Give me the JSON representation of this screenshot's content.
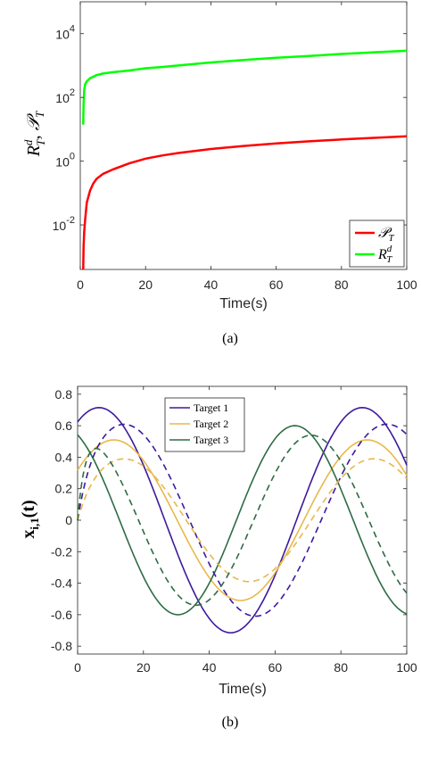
{
  "chart_data": [
    {
      "type": "line",
      "panel_label": "(a)",
      "xlabel": "Time(s)",
      "ylabel_parts": {
        "r": "R",
        "r_sup": "d",
        "r_sub": "T",
        "sep": ", ",
        "p": "𝒫",
        "p_sub": "T"
      },
      "yscale": "log",
      "xlim": [
        0,
        100
      ],
      "ylim": [
        0.0004,
        100000
      ],
      "x_ticks": [
        0,
        20,
        40,
        60,
        80,
        100
      ],
      "x_tick_labels": [
        "0",
        "20",
        "40",
        "60",
        "80",
        "100"
      ],
      "y_ticks": [
        0.01,
        1,
        100,
        10000
      ],
      "y_tick_labels": [
        {
          "base": "10",
          "exp": "-2"
        },
        {
          "base": "10",
          "exp": "0"
        },
        {
          "base": "10",
          "exp": "2"
        },
        {
          "base": "10",
          "exp": "4"
        }
      ],
      "legend": {
        "position": "bottom-right",
        "entries": [
          {
            "main": "𝒫",
            "sub": "T",
            "sup": "",
            "color": "#ff0000"
          },
          {
            "main": "R",
            "sub": "T",
            "sup": "d",
            "color": "#00ff00"
          }
        ]
      },
      "series": [
        {
          "color": "#ff0000",
          "x": [
            0.9,
            1.0,
            1.2,
            1.5,
            2,
            3,
            4,
            5,
            7,
            10,
            15,
            20,
            25,
            30,
            40,
            50,
            60,
            70,
            80,
            90,
            100
          ],
          "y": [
            0.0004,
            0.002,
            0.006,
            0.015,
            0.05,
            0.12,
            0.2,
            0.28,
            0.4,
            0.55,
            0.85,
            1.2,
            1.5,
            1.8,
            2.4,
            3.0,
            3.6,
            4.2,
            4.8,
            5.4,
            6.0
          ]
        },
        {
          "color": "#00ff00",
          "x": [
            0.9,
            1.0,
            1.2,
            1.5,
            2,
            3,
            5,
            7,
            10,
            15,
            20,
            25,
            30,
            40,
            50,
            60,
            70,
            80,
            90,
            100
          ],
          "y": [
            14,
            60,
            170,
            260,
            320,
            400,
            500,
            560,
            620,
            700,
            820,
            900,
            1000,
            1250,
            1500,
            1750,
            2000,
            2300,
            2600,
            2900
          ]
        }
      ]
    },
    {
      "type": "line",
      "panel_label": "(b)",
      "xlabel": "Time(s)",
      "ylabel_parts": {
        "x": "x",
        "sub": "i,1",
        "arg": "(t)"
      },
      "xlim": [
        0,
        100
      ],
      "ylim": [
        -0.85,
        0.85
      ],
      "x_ticks": [
        0,
        20,
        40,
        60,
        80,
        100
      ],
      "x_tick_labels": [
        "0",
        "20",
        "40",
        "60",
        "80",
        "100"
      ],
      "y_ticks": [
        -0.8,
        -0.6,
        -0.4,
        -0.2,
        0,
        0.2,
        0.4,
        0.6,
        0.8
      ],
      "y_tick_labels": [
        "-0.8",
        "-0.6",
        "-0.4",
        "-0.2",
        "0",
        "0.2",
        "0.4",
        "0.6",
        "0.8"
      ],
      "legend": {
        "position": "top-center",
        "entries": [
          {
            "label": "Target 1",
            "color": "#3d1a9c"
          },
          {
            "label": "Target 2",
            "color": "#e8b84a"
          },
          {
            "label": "Target 3",
            "color": "#2e6b45"
          }
        ]
      },
      "series": [
        {
          "color": "#3d1a9c",
          "style": "solid",
          "amplitude": 0.715,
          "period_s": 80,
          "peak_time_s": 6.5
        },
        {
          "color": "#e8b84a",
          "style": "solid",
          "amplitude": 0.51,
          "period_s": 77,
          "peak_time_s": 11
        },
        {
          "color": "#2e6b45",
          "style": "solid",
          "amplitude": 0.6,
          "period_s": 71,
          "peak_time_s": 66
        },
        {
          "color": "#3d1a9c",
          "style": "dashed",
          "amplitude": 0.61,
          "period_s": 80,
          "peak_time_s": 14,
          "start_y": 0
        },
        {
          "color": "#e8b84a",
          "style": "dashed",
          "amplitude": 0.39,
          "period_s": 76,
          "peak_time_s": 14,
          "start_y": 0
        },
        {
          "color": "#2e6b45",
          "style": "dashed",
          "amplitude": 0.54,
          "period_s": 70,
          "peak_time_s": 71,
          "start_y": 0
        }
      ]
    }
  ]
}
